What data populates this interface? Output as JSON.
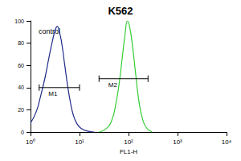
{
  "chart_data": {
    "type": "line",
    "title": "K562",
    "x_label": "FL1-H",
    "log": "x",
    "xlim": [
      1,
      10000
    ],
    "xticks": [
      {
        "value": 1,
        "label": "10⁰"
      },
      {
        "value": 10,
        "label": "10¹"
      },
      {
        "value": 100,
        "label": "10²"
      },
      {
        "value": 1000,
        "label": "10³"
      },
      {
        "value": 10000,
        "label": "10⁴"
      }
    ],
    "ylim": [
      0,
      100
    ],
    "yticks": [
      0,
      20,
      40,
      60,
      80,
      100
    ],
    "grid": false,
    "series": [
      {
        "name": "control",
        "color": "#1f2a8a",
        "x": [
          1,
          1.3,
          1.6,
          2,
          2.4,
          2.8,
          3.2,
          3.5,
          3.9,
          4.4,
          5,
          5.7,
          6.5,
          7.5,
          9,
          11,
          14,
          20
        ],
        "values": [
          8,
          18,
          32,
          50,
          68,
          82,
          92,
          95,
          90,
          78,
          60,
          42,
          27,
          15,
          7,
          3,
          1,
          0
        ]
      },
      {
        "color": "#33cc33",
        "x": [
          25,
          35,
          45,
          55,
          65,
          75,
          85,
          95,
          105,
          120,
          140,
          160,
          190,
          230,
          300
        ],
        "values": [
          0,
          3,
          10,
          25,
          45,
          68,
          88,
          100,
          95,
          78,
          52,
          30,
          13,
          4,
          0
        ]
      }
    ],
    "markers": [
      {
        "label": "M1",
        "x": [
          1.5,
          10
        ],
        "y": 40
      },
      {
        "label": "M2",
        "x": [
          25,
          250
        ],
        "y": 48
      }
    ]
  }
}
